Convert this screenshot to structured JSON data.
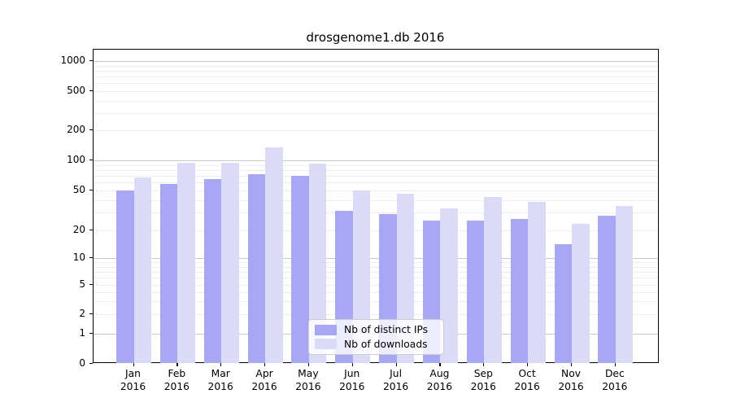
{
  "title": "drosgenome1.db 2016",
  "chart_data": {
    "type": "bar",
    "title": "drosgenome1.db 2016",
    "scale": "symlog",
    "grid": true,
    "legend_position": "lower-center",
    "categories": [
      "Jan",
      "Feb",
      "Mar",
      "Apr",
      "May",
      "Jun",
      "Jul",
      "Aug",
      "Sep",
      "Oct",
      "Nov",
      "Dec"
    ],
    "xtick_year": "2016",
    "series": [
      {
        "name": "Nb of distinct IPs",
        "color": "#a7a7f4",
        "values": [
          50,
          58,
          65,
          73,
          70,
          31,
          29,
          25,
          25,
          26,
          14,
          28
        ]
      },
      {
        "name": "Nb of downloads",
        "color": "#dbdbf8",
        "values": [
          67,
          94,
          94,
          135,
          92,
          50,
          46,
          33,
          43,
          38,
          23,
          35
        ]
      }
    ],
    "yticks": [
      0,
      1,
      2,
      5,
      10,
      20,
      50,
      100,
      200,
      500,
      1000
    ],
    "ylim": [
      0,
      1300
    ],
    "xlabel": "",
    "ylabel": "",
    "colors": {
      "grid_major": "#c8c8c8",
      "grid_minor": "#ededed",
      "axis": "#000000",
      "legend_border": "#cccccc"
    }
  }
}
